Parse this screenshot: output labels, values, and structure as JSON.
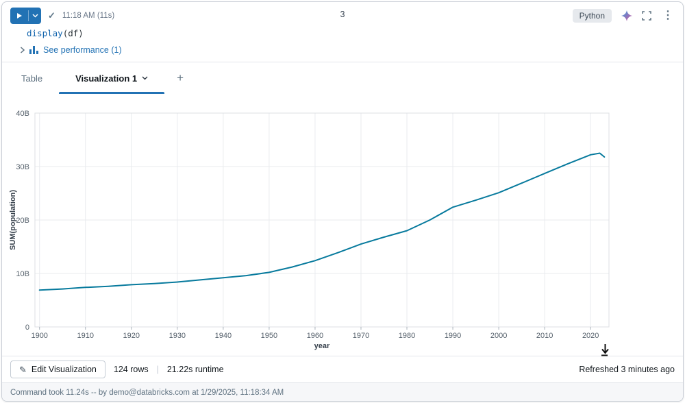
{
  "colors": {
    "accent": "#2272B4",
    "run_button": "#2272B4",
    "code_fn": "#0f62ac"
  },
  "icons": {
    "check": "✓",
    "kebab": "⋮",
    "add_tab": "+",
    "pencil": "✎"
  },
  "cell": {
    "status_time": "11:18 AM (11s)",
    "cell_number": "3",
    "language": "Python",
    "code_fn": "display",
    "code_rest": "(df)",
    "performance_link": "See performance (1)"
  },
  "tabs": [
    {
      "label": "Table"
    },
    {
      "label": "Visualization 1"
    }
  ],
  "chart_data": {
    "type": "line",
    "title": "",
    "xlabel": "year",
    "ylabel": "SUM(population)",
    "x": [
      1900,
      1905,
      1910,
      1915,
      1920,
      1925,
      1930,
      1935,
      1940,
      1945,
      1950,
      1955,
      1960,
      1965,
      1970,
      1975,
      1980,
      1985,
      1990,
      1995,
      2000,
      2005,
      2010,
      2015,
      2020,
      2022,
      2023
    ],
    "series": [
      {
        "name": "SUM(population)",
        "values": [
          6.9,
          7.1,
          7.4,
          7.6,
          7.9,
          8.1,
          8.4,
          8.8,
          9.2,
          9.6,
          10.2,
          11.2,
          12.4,
          13.9,
          15.5,
          16.8,
          18.0,
          20.0,
          22.4,
          23.7,
          25.1,
          26.9,
          28.7,
          30.5,
          32.2,
          32.5,
          31.8
        ]
      }
    ],
    "unit": "B",
    "xlim": [
      1899,
      2024
    ],
    "ylim": [
      0,
      40
    ],
    "xticks": [
      1900,
      1910,
      1920,
      1930,
      1940,
      1950,
      1960,
      1970,
      1980,
      1990,
      2000,
      2010,
      2020
    ],
    "yticks": [
      0,
      10,
      20,
      30,
      40
    ],
    "ytick_labels": [
      "0",
      "10B",
      "20B",
      "30B",
      "40B"
    ],
    "grid": true,
    "legend": false,
    "line_color": "#077A9D"
  },
  "toolbar": {
    "edit_button": "Edit Visualization",
    "rows": "124 rows",
    "separator": "|",
    "runtime": "21.22s runtime",
    "refreshed": "Refreshed 3 minutes ago"
  },
  "status_bar": {
    "text": "Command took 11.24s -- by demo@databricks.com at 1/29/2025, 11:18:34 AM"
  }
}
